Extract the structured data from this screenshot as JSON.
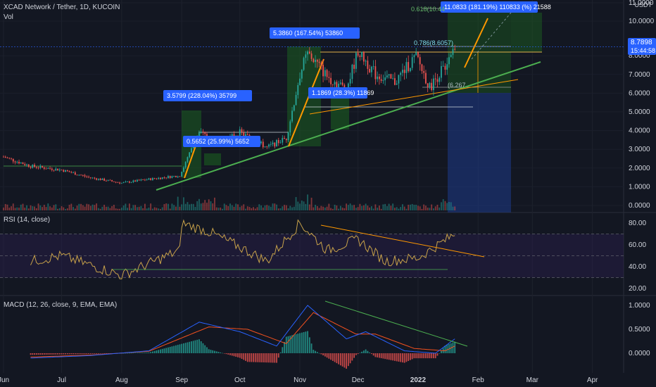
{
  "header": {
    "symbol": "XCAD Network / Tether, 1D, KUCOIN",
    "volume_label": "Vol",
    "currency": "USDT",
    "last_price": "8.7898",
    "countdown": "15:44:58"
  },
  "colors": {
    "background": "#131722",
    "up": "#26a69a",
    "down": "#ef5350",
    "trend_green": "#4caf50",
    "trend_orange": "#ff9800",
    "rsi_line": "#c8a24a",
    "macd_line": "#2962ff",
    "signal_line": "#f4511e",
    "label_blue": "#2962ff"
  },
  "indicators": {
    "rsi_label": "RSI (14, close)",
    "macd_label": "MACD (12, 26, close, 9, EMA, EMA)"
  },
  "annotations": [
    {
      "text": "3.5799 (228.04%) 35799"
    },
    {
      "text": "0.5652 (25.99%) 5652"
    },
    {
      "text": "5.3860 (167.54%) 53860"
    },
    {
      "text": "1.1869 (28.3%) 11869"
    },
    {
      "text": "11.0833 (181.19%) 110833 (%) 21588"
    }
  ],
  "fib_labels": [
    {
      "text": "0.618(10.44"
    },
    {
      "text": "0.786(8.6057)"
    },
    {
      "text": "(6.267"
    }
  ],
  "chart_data": [
    {
      "type": "candlestick",
      "title": "XCAD Network / Tether, 1D, KUCOIN",
      "x_ticks": [
        "Jun",
        "Jul",
        "Aug",
        "Sep",
        "Oct",
        "Nov",
        "Dec",
        "2022",
        "Feb",
        "Mar",
        "Apr"
      ],
      "y_ticks": [
        "0.0000",
        "1.0000",
        "2.0000",
        "3.0000",
        "4.0000",
        "5.0000",
        "6.0000",
        "7.0000",
        "8.0000",
        "10.0000",
        "11.0000"
      ],
      "ylim": [
        0,
        11
      ],
      "price_path": [
        {
          "date": "Jun 1",
          "price": 2.6
        },
        {
          "date": "Jun 15",
          "price": 2.1
        },
        {
          "date": "Jul 1",
          "price": 1.9
        },
        {
          "date": "Jul 15",
          "price": 1.5
        },
        {
          "date": "Aug 1",
          "price": 1.2
        },
        {
          "date": "Aug 15",
          "price": 1.4
        },
        {
          "date": "Aug 31",
          "price": 1.6
        },
        {
          "date": "Sep 10",
          "price": 3.9
        },
        {
          "date": "Sep 20",
          "price": 3.3
        },
        {
          "date": "Oct 1",
          "price": 3.9
        },
        {
          "date": "Oct 15",
          "price": 3.1
        },
        {
          "date": "Oct 25",
          "price": 3.6
        },
        {
          "date": "Nov 1",
          "price": 7.0
        },
        {
          "date": "Nov 5",
          "price": 8.2
        },
        {
          "date": "Nov 15",
          "price": 6.9
        },
        {
          "date": "Nov 25",
          "price": 6.2
        },
        {
          "date": "Dec 1",
          "price": 8.3
        },
        {
          "date": "Dec 10",
          "price": 7.0
        },
        {
          "date": "Dec 20",
          "price": 6.6
        },
        {
          "date": "Dec 31",
          "price": 8.0
        },
        {
          "date": "Jan 7",
          "price": 6.3
        },
        {
          "date": "Jan 15",
          "price": 7.5
        },
        {
          "date": "Jan 20",
          "price": 8.79
        }
      ],
      "last_price": 8.7898
    },
    {
      "type": "line",
      "title": "RSI (14, close)",
      "y_ticks": [
        "20.00",
        "40.00",
        "60.00",
        "80.00"
      ],
      "ylim": [
        20,
        85
      ],
      "levels": [
        70,
        50,
        30
      ],
      "path": [
        {
          "date": "Jun 15",
          "value": 45
        },
        {
          "date": "Jul 1",
          "value": 50
        },
        {
          "date": "Aug 1",
          "value": 32
        },
        {
          "date": "Aug 31",
          "value": 55
        },
        {
          "date": "Sep 1",
          "value": 80
        },
        {
          "date": "Sep 15",
          "value": 72
        },
        {
          "date": "Oct 1",
          "value": 58
        },
        {
          "date": "Oct 15",
          "value": 45
        },
        {
          "date": "Nov 1",
          "value": 80
        },
        {
          "date": "Nov 15",
          "value": 55
        },
        {
          "date": "Dec 1",
          "value": 65
        },
        {
          "date": "Dec 15",
          "value": 45
        },
        {
          "date": "Jan 1",
          "value": 48
        },
        {
          "date": "Jan 20",
          "value": 70
        }
      ]
    },
    {
      "type": "line",
      "title": "MACD (12, 26, close, 9, EMA, EMA)",
      "y_ticks": [
        "0.0000",
        "0.5000",
        "1.0000"
      ],
      "ylim": [
        -0.3,
        1.1
      ],
      "series": [
        {
          "name": "MACD",
          "path": [
            {
              "date": "Jun 15",
              "value": -0.1
            },
            {
              "date": "Jul 15",
              "value": -0.05
            },
            {
              "date": "Aug 15",
              "value": 0.05
            },
            {
              "date": "Sep 10",
              "value": 0.65
            },
            {
              "date": "Oct 1",
              "value": 0.45
            },
            {
              "date": "Oct 20",
              "value": 0.15
            },
            {
              "date": "Nov 5",
              "value": 1.0
            },
            {
              "date": "Nov 25",
              "value": 0.3
            },
            {
              "date": "Dec 5",
              "value": 0.45
            },
            {
              "date": "Dec 25",
              "value": 0.05
            },
            {
              "date": "Jan 10",
              "value": 0.0
            },
            {
              "date": "Jan 20",
              "value": 0.3
            }
          ]
        },
        {
          "name": "Signal",
          "path": [
            {
              "date": "Jun 15",
              "value": -0.08
            },
            {
              "date": "Jul 15",
              "value": -0.04
            },
            {
              "date": "Aug 15",
              "value": 0.04
            },
            {
              "date": "Sep 15",
              "value": 0.55
            },
            {
              "date": "Oct 5",
              "value": 0.5
            },
            {
              "date": "Oct 25",
              "value": 0.2
            },
            {
              "date": "Nov 8",
              "value": 0.85
            },
            {
              "date": "Nov 30",
              "value": 0.4
            },
            {
              "date": "Dec 10",
              "value": 0.4
            },
            {
              "date": "Dec 30",
              "value": 0.1
            },
            {
              "date": "Jan 15",
              "value": 0.05
            },
            {
              "date": "Jan 20",
              "value": 0.15
            }
          ]
        }
      ]
    }
  ]
}
